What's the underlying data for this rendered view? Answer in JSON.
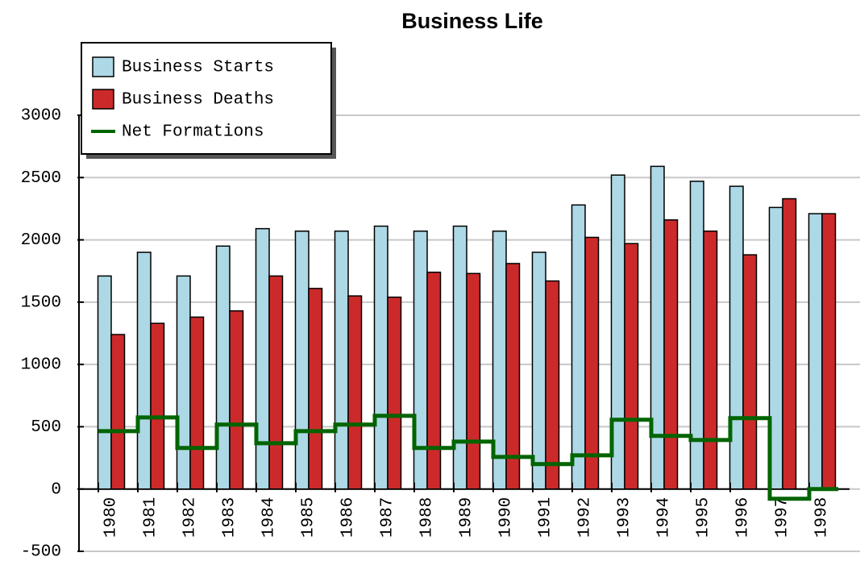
{
  "chart_data": {
    "type": "bar",
    "title": "Business Life",
    "categories": [
      "1980",
      "1981",
      "1982",
      "1983",
      "1984",
      "1985",
      "1986",
      "1987",
      "1988",
      "1989",
      "1990",
      "1991",
      "1992",
      "1993",
      "1994",
      "1995",
      "1996",
      "1997",
      "1998"
    ],
    "series": [
      {
        "name": "Business Starts",
        "color": "#add8e6",
        "values": [
          1710,
          1900,
          1710,
          1950,
          2090,
          2070,
          2070,
          2110,
          2070,
          2110,
          2070,
          1900,
          2280,
          2520,
          2590,
          2470,
          2430,
          2260,
          2210
        ]
      },
      {
        "name": "Business Deaths",
        "color": "#cc2a2a",
        "values": [
          1240,
          1330,
          1380,
          1430,
          1710,
          1610,
          1550,
          1540,
          1740,
          1730,
          1810,
          1670,
          2020,
          1970,
          2160,
          2070,
          1880,
          2330,
          2210
        ]
      },
      {
        "name": "Net Formations",
        "color": "#006400",
        "type": "step",
        "values": [
          465,
          575,
          330,
          517,
          368,
          465,
          517,
          588,
          330,
          381,
          258,
          200,
          271,
          556,
          427,
          394,
          569,
          -78,
          0
        ]
      }
    ],
    "ylim": [
      -500,
      3000
    ],
    "yticks": [
      -500,
      0,
      500,
      1000,
      1500,
      2000,
      2500,
      3000
    ],
    "grid": true,
    "legend": "upper-left"
  }
}
